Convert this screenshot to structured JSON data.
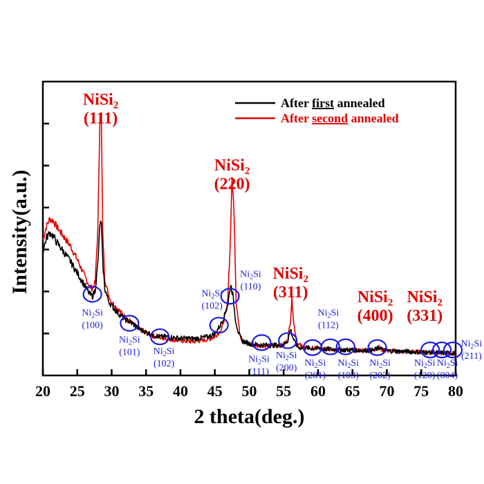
{
  "chart_data": {
    "type": "line",
    "xlabel": "2 theta(deg.)",
    "ylabel": "Intensity(a.u.)",
    "xlim": [
      20,
      80
    ],
    "xticks": [
      20,
      25,
      30,
      35,
      40,
      45,
      50,
      55,
      60,
      65,
      70,
      75,
      80
    ],
    "yticks_labeled": false,
    "series": [
      {
        "name": "After first annealed",
        "name_parts": [
          "After ",
          "first",
          " annealed"
        ],
        "color": "#000000",
        "x": [
          20,
          20.5,
          21,
          21.5,
          22,
          23,
          24,
          25,
          26,
          26.8,
          27.2,
          27.6,
          28.0,
          28.3,
          28.5,
          28.7,
          29.0,
          29.5,
          30,
          31,
          32,
          33,
          34,
          35,
          36,
          37,
          38,
          39,
          40,
          41,
          42,
          43,
          44,
          45,
          45.8,
          46.4,
          46.9,
          47.3,
          47.6,
          48.0,
          48.5,
          49,
          50,
          51,
          52,
          53,
          54,
          55,
          55.6,
          56.0,
          56.3,
          56.7,
          57.2,
          58,
          59,
          60,
          61,
          62,
          63,
          64,
          65,
          66,
          67,
          68,
          69,
          69.4,
          70,
          71,
          72,
          73,
          74,
          75,
          76,
          77,
          78,
          79,
          80
        ],
        "y": [
          3.2,
          3.55,
          3.7,
          3.6,
          3.45,
          3.2,
          2.95,
          2.65,
          2.35,
          2.1,
          2.05,
          2.2,
          2.9,
          3.95,
          3.9,
          2.9,
          2.25,
          1.95,
          1.8,
          1.6,
          1.45,
          1.35,
          1.2,
          1.12,
          1.05,
          1.0,
          1.0,
          0.98,
          0.96,
          0.96,
          0.95,
          0.97,
          1.0,
          1.08,
          1.3,
          1.55,
          1.85,
          2.35,
          2.1,
          1.45,
          1.05,
          0.9,
          0.82,
          0.8,
          0.79,
          0.78,
          0.78,
          0.8,
          0.9,
          1.2,
          1.0,
          0.82,
          0.72,
          0.72,
          0.7,
          0.7,
          0.68,
          0.68,
          0.67,
          0.66,
          0.66,
          0.65,
          0.65,
          0.65,
          0.72,
          0.66,
          0.64,
          0.63,
          0.62,
          0.62,
          0.61,
          0.6,
          0.6,
          0.59,
          0.58,
          0.58,
          0.57
        ]
      },
      {
        "name": "After second annealed",
        "name_parts": [
          "After ",
          "second",
          " annealed"
        ],
        "color": "#e00000",
        "x": [
          20,
          20.5,
          21,
          21.5,
          22,
          23,
          24,
          25,
          26,
          26.8,
          27.2,
          27.6,
          28.0,
          28.3,
          28.5,
          28.7,
          29.0,
          29.5,
          30,
          31,
          32,
          33,
          34,
          35,
          36,
          37,
          38,
          39,
          40,
          41,
          42,
          43,
          44,
          45,
          46,
          46.8,
          47.2,
          47.5,
          47.8,
          48.1,
          48.6,
          49,
          50,
          51,
          52,
          53,
          54,
          55,
          55.6,
          56.0,
          56.2,
          56.5,
          57.0,
          58,
          59,
          60,
          61,
          62,
          63,
          64,
          65,
          66,
          67,
          68,
          69,
          69.3,
          70,
          71,
          72,
          73,
          74,
          75,
          76,
          77,
          78,
          79,
          80
        ],
        "y": [
          3.5,
          3.85,
          4.05,
          4.0,
          3.85,
          3.6,
          3.35,
          3.0,
          2.6,
          2.3,
          2.25,
          2.4,
          3.8,
          6.8,
          6.6,
          3.7,
          2.5,
          2.1,
          1.9,
          1.7,
          1.5,
          1.35,
          1.2,
          1.1,
          1.02,
          0.98,
          0.95,
          0.92,
          0.9,
          0.88,
          0.88,
          0.9,
          0.93,
          1.0,
          1.2,
          1.8,
          3.2,
          5.1,
          4.2,
          1.9,
          1.1,
          0.88,
          0.8,
          0.78,
          0.77,
          0.76,
          0.77,
          0.79,
          0.92,
          1.45,
          2.0,
          1.3,
          0.82,
          0.72,
          0.7,
          0.7,
          0.68,
          0.68,
          0.67,
          0.66,
          0.66,
          0.65,
          0.65,
          0.65,
          0.74,
          0.66,
          0.64,
          0.63,
          0.62,
          0.62,
          0.61,
          0.6,
          0.6,
          0.59,
          0.58,
          0.58,
          0.57
        ]
      }
    ],
    "peak_labels": [
      {
        "x": 28.4,
        "y": 7.0,
        "main": "NiSi",
        "sub": "2",
        "hkl": "(111)"
      },
      {
        "x": 47.5,
        "y": 5.3,
        "main": "NiSi",
        "sub": "2",
        "hkl": "(220)"
      },
      {
        "x": 56.0,
        "y": 2.5,
        "main": "NiSi",
        "sub": "2",
        "hkl": "(311)"
      },
      {
        "x": 68.3,
        "y": 1.9,
        "main": "NiSi",
        "sub": "2",
        "hkl": "(400)"
      },
      {
        "x": 75.5,
        "y": 1.9,
        "main": "NiSi",
        "sub": "2",
        "hkl": "(331)"
      }
    ],
    "ni2si_markers": [
      {
        "x": 27.2,
        "y": 2.1,
        "main": "Ni",
        "sub": "2",
        "rest": "Si",
        "hkl": "(100)",
        "label_x": 27.2,
        "label_y": 1.55,
        "align": "middle"
      },
      {
        "x": 32.6,
        "y": 1.35,
        "main": "Ni",
        "sub": "2",
        "rest": "Si",
        "hkl": "(101)",
        "label_x": 32.6,
        "label_y": 0.85,
        "align": "middle"
      },
      {
        "x": 37.0,
        "y": 1.0,
        "main": "Ni",
        "sub": "2",
        "rest": "Si",
        "hkl": "(102)",
        "label_x": 37.6,
        "label_y": 0.55,
        "align": "middle"
      },
      {
        "x": 45.6,
        "y": 1.3,
        "main": "Ni",
        "sub": "2",
        "rest": "Si",
        "hkl": "(102)",
        "label_x": 44.6,
        "label_y": 2.05,
        "align": "middle"
      },
      {
        "x": 47.2,
        "y": 2.05,
        "main": "Ni",
        "sub": "2",
        "rest": "Si",
        "hkl": "(110)",
        "label_x": 50.2,
        "label_y": 2.55,
        "align": "middle"
      },
      {
        "x": 51.8,
        "y": 0.85,
        "main": "Ni",
        "sub": "2",
        "rest": "Si",
        "hkl": "(111)",
        "label_x": 51.4,
        "label_y": 0.35,
        "align": "middle"
      },
      {
        "x": 55.6,
        "y": 0.9,
        "main": "Ni",
        "sub": "2",
        "rest": "Si",
        "hkl": "(200)",
        "label_x": 55.4,
        "label_y": 0.45,
        "align": "middle"
      },
      {
        "x": 59.2,
        "y": 0.72,
        "main": "Ni",
        "sub": "2",
        "rest": "Si",
        "hkl": "(201)",
        "label_x": 59.6,
        "label_y": 0.25,
        "align": "middle"
      },
      {
        "x": 61.8,
        "y": 0.74,
        "main": "Ni",
        "sub": "2",
        "rest": "Si",
        "hkl": "(112)",
        "label_x": 61.5,
        "label_y": 1.55,
        "align": "middle"
      },
      {
        "x": 64.0,
        "y": 0.74,
        "main": "Ni",
        "sub": "2",
        "rest": "Si",
        "hkl": "(103)",
        "label_x": 64.4,
        "label_y": 0.25,
        "align": "middle"
      },
      {
        "x": 68.6,
        "y": 0.72,
        "main": "Ni",
        "sub": "2",
        "rest": "Si",
        "hkl": "(202)",
        "label_x": 69.0,
        "label_y": 0.25,
        "align": "middle"
      },
      {
        "x": 76.3,
        "y": 0.66,
        "main": "Ni",
        "sub": "2",
        "rest": "Si",
        "hkl": "(120)",
        "label_x": 75.5,
        "label_y": 0.25,
        "align": "middle"
      },
      {
        "x": 78.0,
        "y": 0.66,
        "main": "Ni",
        "sub": "2",
        "rest": "Si",
        "hkl": "(004)",
        "label_x": 78.8,
        "label_y": 0.25,
        "align": "middle"
      },
      {
        "x": 79.6,
        "y": 0.66,
        "main": "Ni",
        "sub": "2",
        "rest": "Si",
        "hkl": "(211)",
        "label_x": 82.3,
        "label_y": 0.75,
        "align": "middle"
      }
    ],
    "legend_position": "top-right"
  }
}
